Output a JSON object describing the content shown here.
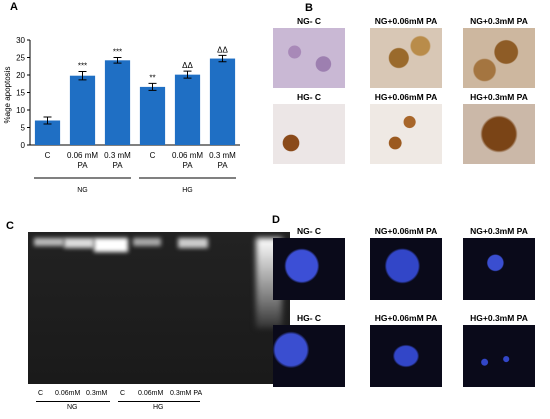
{
  "chart_data": {
    "type": "bar",
    "panel_label": "A",
    "y_label": "%age apoptosis",
    "categories": [
      "C",
      "0.06 mM PA",
      "0.3 mM PA",
      "C",
      "0.06 mM PA",
      "0.3 mM PA"
    ],
    "values": [
      7,
      19.8,
      24.2,
      16.6,
      20.1,
      24.7
    ],
    "errors": [
      1,
      1.2,
      0.8,
      1,
      1,
      0.9
    ],
    "annotations": [
      null,
      "***",
      "***",
      "**",
      "ΔΔ",
      "ΔΔ"
    ],
    "groups": [
      "NG",
      "HG"
    ],
    "color": "#1f6fc4",
    "ylim": [
      0,
      30
    ],
    "yticks": [
      0,
      5,
      10,
      15,
      20,
      25,
      30
    ]
  },
  "panel_b": {
    "label": "B",
    "images": [
      "NG- C",
      "NG+0.06mM PA",
      "NG+0.3mM PA",
      "HG- C",
      "HG+0.06mM PA",
      "HG+0.3mM PA"
    ]
  },
  "panel_c": {
    "label": "C",
    "lanes": [
      "C",
      "0.06mM",
      "0.3mM",
      "C",
      "0.06mM",
      "0.3mM PA"
    ],
    "groups": [
      "NG",
      "HG"
    ]
  },
  "panel_d": {
    "label": "D",
    "images": [
      "NG- C",
      "NG+0.06mM PA",
      "NG+0.3mM PA",
      "HG- C",
      "HG+0.06mM PA",
      "HG+0.3mM PA"
    ]
  }
}
